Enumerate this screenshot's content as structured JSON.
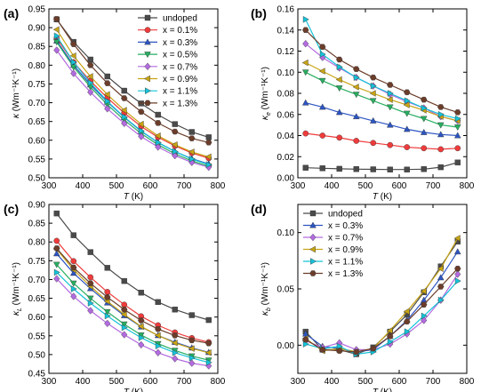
{
  "figure": {
    "marker_colors": {
      "undoped": "#4a4a4a",
      "0.1": "#ef3b3b",
      "0.3": "#2c55c2",
      "0.5": "#27ae60",
      "0.7": "#b36be0",
      "0.9": "#c8a414",
      "1.1": "#16c3d8",
      "1.3": "#6b3d2a"
    }
  },
  "chart_data": [
    {
      "panel": "(a)",
      "type": "line",
      "xlabel": "T (K)",
      "ylabel": "κ (Wm⁻¹K⁻¹)",
      "xlim": [
        300,
        800
      ],
      "ylim": [
        0.5,
        0.95
      ],
      "xticks": [
        "300",
        "400",
        "500",
        "600",
        "700",
        "800"
      ],
      "yticks": [
        "0.50",
        "0.55",
        "0.60",
        "0.65",
        "0.70",
        "0.75",
        "0.80",
        "0.85",
        "0.90",
        "0.95"
      ],
      "legend": "top-right",
      "x": [
        323,
        373,
        423,
        473,
        523,
        573,
        623,
        673,
        723,
        773
      ],
      "series": [
        {
          "name": "undoped",
          "color": "#4a4a4a",
          "marker": "square",
          "values": [
            0.922,
            0.862,
            0.815,
            0.77,
            0.732,
            0.698,
            0.668,
            0.643,
            0.622,
            0.608
          ]
        },
        {
          "name": "x = 0.1%",
          "color": "#ef3b3b",
          "marker": "circle",
          "values": [
            0.872,
            0.808,
            0.758,
            0.713,
            0.673,
            0.637,
            0.608,
            0.585,
            0.566,
            0.552
          ]
        },
        {
          "name": "x = 0.3%",
          "color": "#2c55c2",
          "marker": "triangle-up",
          "values": [
            0.865,
            0.8,
            0.748,
            0.702,
            0.661,
            0.624,
            0.594,
            0.57,
            0.551,
            0.537
          ]
        },
        {
          "name": "x = 0.5%",
          "color": "#27ae60",
          "marker": "triangle-down",
          "values": [
            0.862,
            0.795,
            0.742,
            0.695,
            0.654,
            0.618,
            0.588,
            0.564,
            0.545,
            0.531
          ]
        },
        {
          "name": "x = 0.7%",
          "color": "#b36be0",
          "marker": "diamond",
          "values": [
            0.84,
            0.778,
            0.728,
            0.684,
            0.645,
            0.61,
            0.582,
            0.559,
            0.541,
            0.528
          ]
        },
        {
          "name": "x = 0.9%",
          "color": "#c8a414",
          "marker": "triangle-left",
          "values": [
            0.895,
            0.825,
            0.77,
            0.722,
            0.68,
            0.643,
            0.612,
            0.588,
            0.569,
            0.556
          ]
        },
        {
          "name": "x = 1.1%",
          "color": "#16c3d8",
          "marker": "triangle-right",
          "values": [
            0.878,
            0.808,
            0.753,
            0.704,
            0.662,
            0.625,
            0.594,
            0.57,
            0.55,
            0.535
          ]
        },
        {
          "name": "x = 1.3%",
          "color": "#6b3d2a",
          "marker": "hexagon",
          "values": [
            0.923,
            0.856,
            0.8,
            0.752,
            0.712,
            0.676,
            0.646,
            0.623,
            0.605,
            0.594
          ]
        }
      ]
    },
    {
      "panel": "(b)",
      "type": "line",
      "xlabel": "T (K)",
      "ylabel": "κe (Wm⁻¹K⁻¹)",
      "xlim": [
        300,
        800
      ],
      "ylim": [
        0.0,
        0.16
      ],
      "xticks": [
        "300",
        "400",
        "500",
        "600",
        "700",
        "800"
      ],
      "yticks": [
        "0.00",
        "0.02",
        "0.04",
        "0.06",
        "0.08",
        "0.10",
        "0.12",
        "0.14",
        "0.16"
      ],
      "legend": "none",
      "x": [
        323,
        373,
        423,
        473,
        523,
        573,
        623,
        673,
        723,
        773
      ],
      "series": [
        {
          "name": "undoped",
          "color": "#4a4a4a",
          "marker": "square",
          "values": [
            0.0095,
            0.009,
            0.0085,
            0.0082,
            0.008,
            0.0078,
            0.0078,
            0.0082,
            0.01,
            0.0145
          ]
        },
        {
          "name": "x = 0.1%",
          "color": "#ef3b3b",
          "marker": "circle",
          "values": [
            0.042,
            0.04,
            0.038,
            0.035,
            0.033,
            0.031,
            0.029,
            0.028,
            0.027,
            0.028
          ]
        },
        {
          "name": "x = 0.3%",
          "color": "#2c55c2",
          "marker": "triangle-up",
          "values": [
            0.071,
            0.067,
            0.062,
            0.058,
            0.054,
            0.05,
            0.046,
            0.043,
            0.041,
            0.04
          ]
        },
        {
          "name": "x = 0.5%",
          "color": "#27ae60",
          "marker": "triangle-down",
          "values": [
            0.1,
            0.092,
            0.085,
            0.079,
            0.073,
            0.067,
            0.061,
            0.056,
            0.05,
            0.048
          ]
        },
        {
          "name": "x = 0.7%",
          "color": "#b36be0",
          "marker": "diamond",
          "values": [
            0.127,
            0.114,
            0.104,
            0.095,
            0.087,
            0.079,
            0.072,
            0.066,
            0.058,
            0.054
          ]
        },
        {
          "name": "x = 0.9%",
          "color": "#c8a414",
          "marker": "triangle-left",
          "values": [
            0.109,
            0.101,
            0.093,
            0.086,
            0.08,
            0.074,
            0.069,
            0.064,
            0.058,
            0.054
          ]
        },
        {
          "name": "x = 1.1%",
          "color": "#16c3d8",
          "marker": "triangle-right",
          "values": [
            0.15,
            0.117,
            0.105,
            0.095,
            0.087,
            0.08,
            0.073,
            0.066,
            0.06,
            0.056
          ]
        },
        {
          "name": "x = 1.3%",
          "color": "#6b3d2a",
          "marker": "hexagon",
          "values": [
            0.14,
            0.124,
            0.112,
            0.103,
            0.095,
            0.088,
            0.081,
            0.074,
            0.067,
            0.062
          ]
        }
      ]
    },
    {
      "panel": "(c)",
      "type": "line",
      "xlabel": "T (K)",
      "ylabel": "κL (Wm⁻¹K⁻¹)",
      "xlim": [
        300,
        800
      ],
      "ylim": [
        0.45,
        0.9
      ],
      "xticks": [
        "300",
        "400",
        "500",
        "600",
        "700",
        "800"
      ],
      "yticks": [
        "0.45",
        "0.50",
        "0.55",
        "0.60",
        "0.65",
        "0.70",
        "0.75",
        "0.80",
        "0.85",
        "0.90"
      ],
      "legend": "none",
      "x": [
        323,
        373,
        423,
        473,
        523,
        573,
        623,
        673,
        723,
        773
      ],
      "series": [
        {
          "name": "undoped",
          "color": "#4a4a4a",
          "marker": "square",
          "values": [
            0.876,
            0.818,
            0.773,
            0.731,
            0.696,
            0.665,
            0.64,
            0.62,
            0.605,
            0.592
          ]
        },
        {
          "name": "x = 0.1%",
          "color": "#ef3b3b",
          "marker": "circle",
          "values": [
            0.803,
            0.749,
            0.706,
            0.667,
            0.633,
            0.602,
            0.578,
            0.559,
            0.544,
            0.533
          ]
        },
        {
          "name": "x = 0.3%",
          "color": "#2c55c2",
          "marker": "triangle-up",
          "values": [
            0.769,
            0.717,
            0.676,
            0.638,
            0.604,
            0.574,
            0.551,
            0.533,
            0.518,
            0.506
          ]
        },
        {
          "name": "x = 0.5%",
          "color": "#27ae60",
          "marker": "triangle-down",
          "values": [
            0.74,
            0.69,
            0.65,
            0.614,
            0.581,
            0.552,
            0.529,
            0.511,
            0.496,
            0.485
          ]
        },
        {
          "name": "x = 0.7%",
          "color": "#b36be0",
          "marker": "diamond",
          "values": [
            0.702,
            0.655,
            0.617,
            0.583,
            0.553,
            0.526,
            0.505,
            0.489,
            0.477,
            0.47
          ]
        },
        {
          "name": "x = 0.9%",
          "color": "#c8a414",
          "marker": "triangle-left",
          "values": [
            0.781,
            0.726,
            0.682,
            0.642,
            0.607,
            0.575,
            0.551,
            0.531,
            0.516,
            0.505
          ]
        },
        {
          "name": "x = 1.1%",
          "color": "#16c3d8",
          "marker": "triangle-right",
          "values": [
            0.719,
            0.675,
            0.637,
            0.603,
            0.572,
            0.545,
            0.523,
            0.505,
            0.491,
            0.479
          ]
        },
        {
          "name": "x = 1.3%",
          "color": "#6b3d2a",
          "marker": "hexagon",
          "values": [
            0.783,
            0.732,
            0.69,
            0.653,
            0.62,
            0.591,
            0.568,
            0.551,
            0.538,
            0.53
          ]
        }
      ]
    },
    {
      "panel": "(d)",
      "type": "line",
      "xlabel": "T (K)",
      "ylabel": "κb (Wm⁻¹K⁻¹)",
      "xlim": [
        300,
        800
      ],
      "ylim": [
        -0.025,
        0.125
      ],
      "xticks": [
        "300",
        "400",
        "500",
        "600",
        "700",
        "800"
      ],
      "yticks": [
        "0.00",
        "0.05",
        "0.10"
      ],
      "legend": "top-left",
      "x": [
        323,
        373,
        423,
        473,
        523,
        573,
        623,
        673,
        723,
        773
      ],
      "series": [
        {
          "name": "undoped",
          "color": "#4a4a4a",
          "marker": "square",
          "values": [
            0.012,
            -0.004,
            -0.004,
            -0.008,
            -0.002,
            0.012,
            0.027,
            0.047,
            0.07,
            0.092
          ]
        },
        {
          "name": "x = 0.3%",
          "color": "#2c55c2",
          "marker": "triangle-up",
          "values": [
            0.01,
            -0.001,
            -0.003,
            -0.006,
            -0.004,
            0.008,
            0.022,
            0.04,
            0.06,
            0.083
          ]
        },
        {
          "name": "x = 0.7%",
          "color": "#b36be0",
          "marker": "diamond",
          "values": [
            0.004,
            -0.002,
            0.002,
            -0.004,
            -0.004,
            0.001,
            0.01,
            0.022,
            0.04,
            0.063
          ]
        },
        {
          "name": "x = 0.9%",
          "color": "#c8a414",
          "marker": "triangle-left",
          "values": [
            0.006,
            -0.005,
            -0.003,
            -0.006,
            -0.003,
            0.013,
            0.03,
            0.048,
            0.068,
            0.095
          ]
        },
        {
          "name": "x = 1.1%",
          "color": "#16c3d8",
          "marker": "triangle-right",
          "values": [
            0.001,
            -0.003,
            -0.001,
            -0.008,
            -0.006,
            0.003,
            0.012,
            0.026,
            0.04,
            0.057
          ]
        },
        {
          "name": "x = 1.3%",
          "color": "#6b3d2a",
          "marker": "hexagon",
          "values": [
            0.005,
            -0.004,
            -0.005,
            -0.006,
            -0.003,
            0.008,
            0.021,
            0.036,
            0.052,
            0.068
          ]
        }
      ]
    }
  ]
}
